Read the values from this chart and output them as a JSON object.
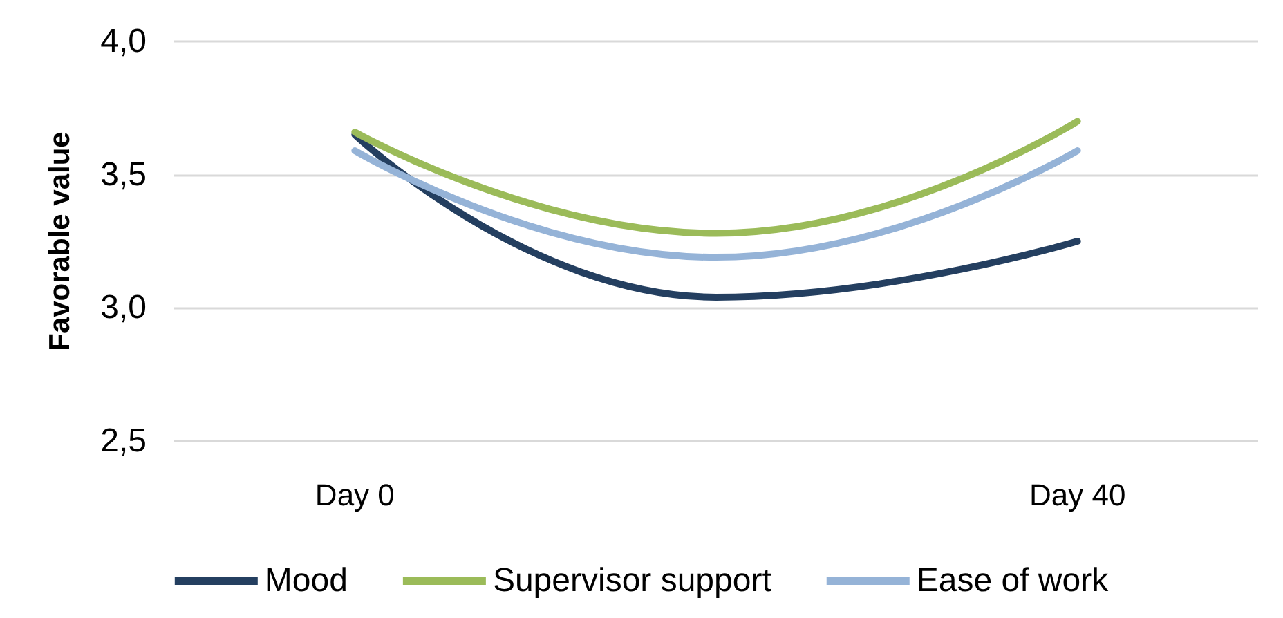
{
  "chart_data": {
    "type": "line",
    "ylabel": "Favorable value",
    "categories": [
      "Day 0",
      null,
      "Day 40"
    ],
    "series": [
      {
        "name": "Mood",
        "color": "#243f60",
        "values": [
          3.65,
          3.04,
          3.25
        ]
      },
      {
        "name": "Supervisor support",
        "color": "#9bbb59",
        "values": [
          3.66,
          3.28,
          3.7
        ]
      },
      {
        "name": "Ease of work",
        "color": "#95b3d7",
        "values": [
          3.59,
          3.19,
          3.59
        ]
      }
    ],
    "ylim": [
      2.5,
      4.0
    ],
    "yticks": [
      {
        "value": 2.5,
        "label": "2,5"
      },
      {
        "value": 3.0,
        "label": "3,0"
      },
      {
        "value": 3.5,
        "label": "3,5"
      },
      {
        "value": 4.0,
        "label": "4,0"
      }
    ],
    "grid": "y",
    "legend": "bottom",
    "marker": "none",
    "line_style": "solid"
  }
}
